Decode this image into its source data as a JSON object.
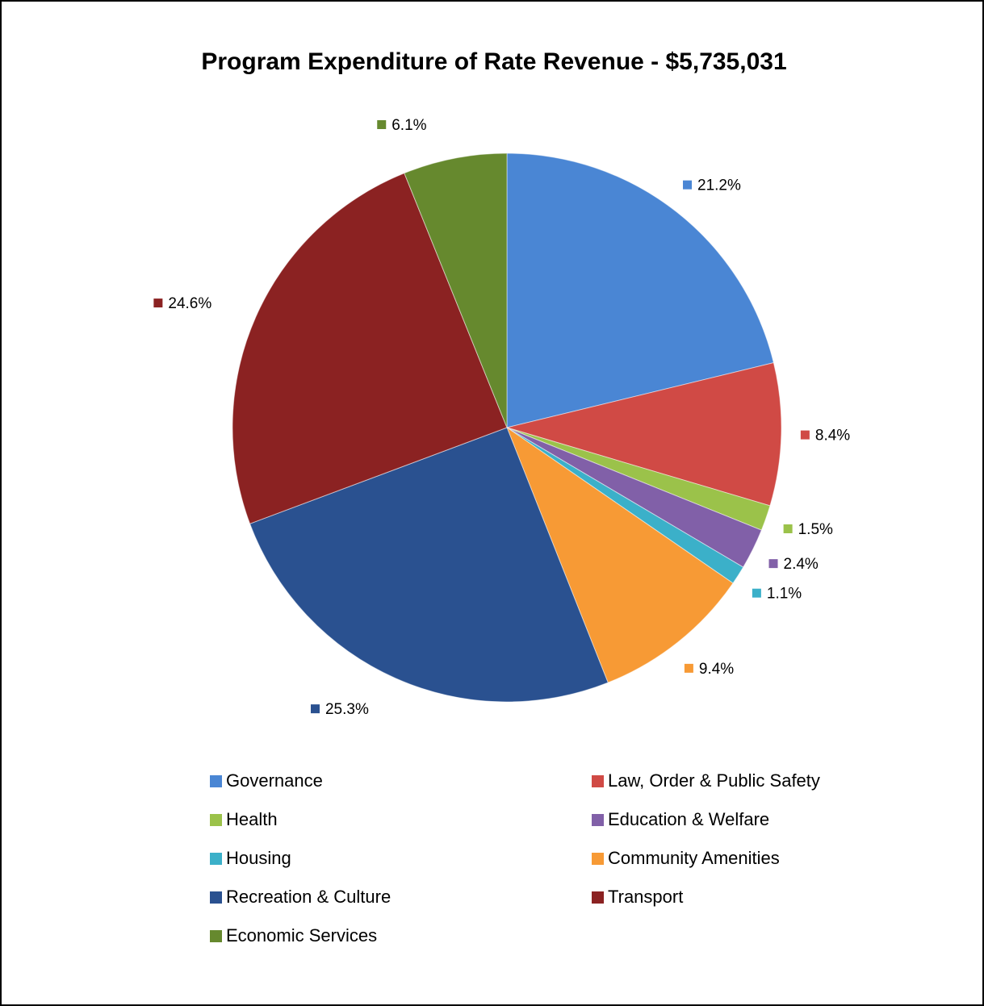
{
  "chart_data": {
    "type": "pie",
    "title": "Program Expenditure of Rate Revenue - $5,735,031",
    "categories": [
      "Governance",
      "Law, Order & Public Safety",
      "Health",
      "Education & Welfare",
      "Housing",
      "Community Amenities",
      "Recreation & Culture",
      "Transport",
      "Economic Services"
    ],
    "values": [
      21.2,
      8.4,
      1.5,
      2.4,
      1.1,
      9.4,
      25.3,
      24.6,
      6.1
    ],
    "value_labels": [
      "21.2%",
      "8.4%",
      "1.5%",
      "2.4%",
      "1.1%",
      "9.4%",
      "25.3%",
      "24.6%",
      "6.1%"
    ],
    "colors": [
      "#4a86d4",
      "#d04a45",
      "#9bc24a",
      "#8160a8",
      "#3bb0c9",
      "#f79a35",
      "#2a5190",
      "#8b2222",
      "#66892e"
    ],
    "legend": "bottom"
  }
}
